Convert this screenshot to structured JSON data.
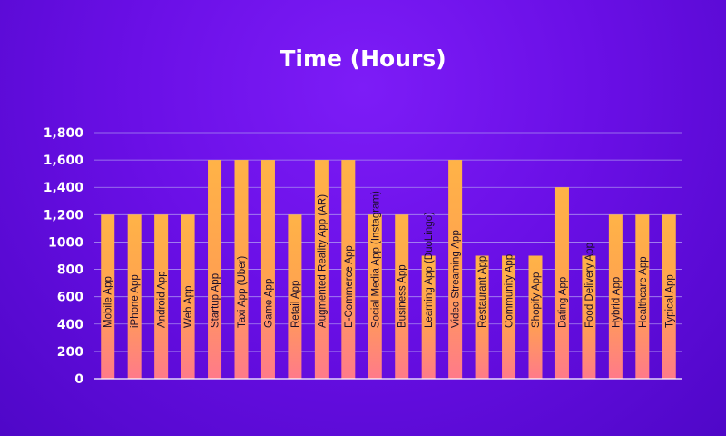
{
  "chart_data": {
    "type": "bar",
    "title": "Time (Hours)",
    "xlabel": "",
    "ylabel": "",
    "ylim": [
      0,
      1800
    ],
    "grid": true,
    "legend": "none",
    "y_ticks": [
      {
        "value": 0,
        "label": "0"
      },
      {
        "value": 200,
        "label": "200"
      },
      {
        "value": 400,
        "label": "400"
      },
      {
        "value": 600,
        "label": "600"
      },
      {
        "value": 800,
        "label": "800"
      },
      {
        "value": 1000,
        "label": "1000"
      },
      {
        "value": 1200,
        "label": "1,200"
      },
      {
        "value": 1400,
        "label": "1,400"
      },
      {
        "value": 1600,
        "label": "1,600"
      },
      {
        "value": 1800,
        "label": "1,800"
      }
    ],
    "categories": [
      "Mobile App",
      "iPhone App",
      "Android App",
      "Web App",
      "Startup App",
      "Taxi App (Uber)",
      "Game App",
      "Retail App",
      "Augmented Reality App (AR)",
      "E-Commerce App",
      "Social Media App (Instagram)",
      "Business App",
      "Learning App (DuoLingo)",
      "Video Streaming App",
      "Restaurant App",
      "Community App",
      "Shopify App",
      "Dating App",
      "Food Delivery App",
      "Hybrid App",
      "Healthcare App",
      "Typical App"
    ],
    "values": [
      1200,
      1200,
      1200,
      1200,
      1600,
      1600,
      1600,
      1200,
      1600,
      1600,
      1200,
      1200,
      900,
      1600,
      900,
      900,
      900,
      1400,
      900,
      1200,
      1200,
      1200
    ],
    "colors": {
      "bar_top": "#ffb347",
      "bar_bottom": "#ff7a8a",
      "grid": "#a98cf0",
      "axis": "#ffffff",
      "text": "#ffffff",
      "bar_label": "#1c0f2a"
    }
  }
}
